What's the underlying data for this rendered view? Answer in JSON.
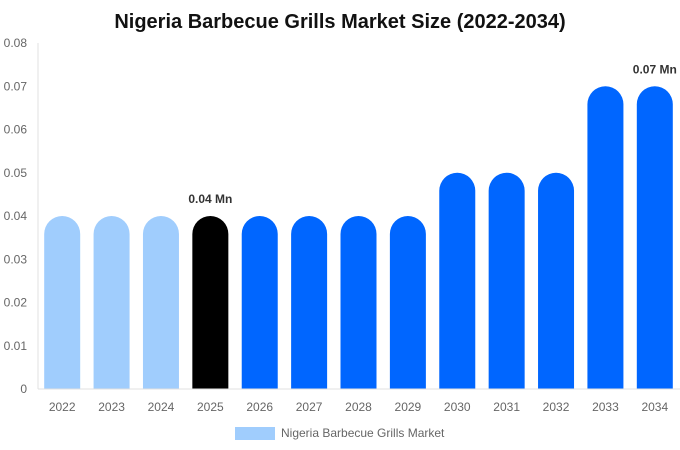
{
  "chart_data": {
    "type": "bar",
    "title": "Nigeria Barbecue Grills Market Size (2022-2034)",
    "xlabel": "",
    "ylabel": "",
    "ylim": [
      0,
      0.08
    ],
    "yticks": [
      "0",
      "0.01",
      "0.02",
      "0.03",
      "0.04",
      "0.05",
      "0.06",
      "0.07",
      "0.08"
    ],
    "categories": [
      "2022",
      "2023",
      "2024",
      "2025",
      "2026",
      "2027",
      "2028",
      "2029",
      "2030",
      "2031",
      "2032",
      "2033",
      "2034"
    ],
    "series": [
      {
        "name": "Nigeria Barbecue Grills Market",
        "values": [
          0.04,
          0.04,
          0.04,
          0.04,
          0.04,
          0.04,
          0.04,
          0.04,
          0.05,
          0.05,
          0.05,
          0.07,
          0.07
        ]
      }
    ],
    "bar_colors": [
      "#a0cdfd",
      "#a0cdfd",
      "#a0cdfd",
      "#000000",
      "#0066ff",
      "#0066ff",
      "#0066ff",
      "#0066ff",
      "#0066ff",
      "#0066ff",
      "#0066ff",
      "#0066ff",
      "#0066ff"
    ],
    "legend_color": "#a0cdfd",
    "legend_position": "bottom",
    "grid": false,
    "annotations": [
      {
        "index": 3,
        "text": "0.04 Mn"
      },
      {
        "index": 12,
        "text": "0.07 Mn"
      }
    ]
  }
}
